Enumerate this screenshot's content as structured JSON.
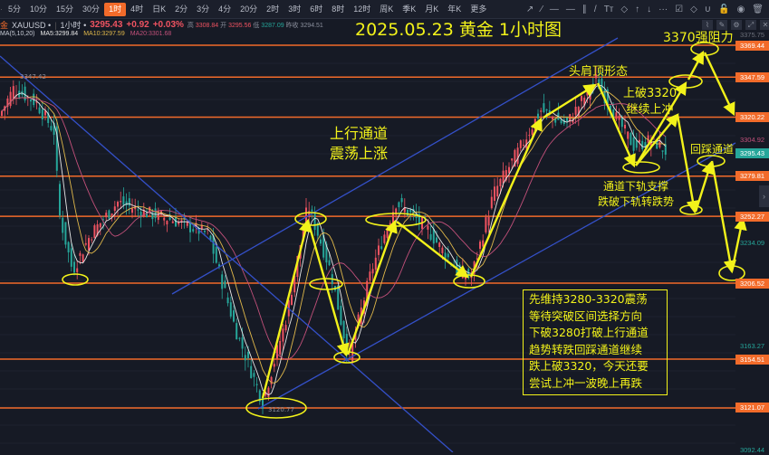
{
  "toolbar": {
    "timeframes": [
      "5分",
      "10分",
      "15分",
      "30分",
      "1时",
      "4时",
      "日K",
      "2分",
      "3分",
      "4分",
      "20分",
      "2时",
      "3时",
      "6时",
      "8时",
      "12时",
      "周K",
      "季K",
      "月K",
      "年K",
      "更多"
    ],
    "active": "1时",
    "tools": [
      "arrow-icon",
      "ray-icon",
      "horizontal-line-icon",
      "horizontal-ray-icon",
      "parallel-channel-icon",
      "trend-line-icon",
      "text-icon",
      "tag-icon",
      "arrow-up-icon",
      "arrow-down-icon",
      "more-icon",
      "edit-icon",
      "eraser-icon",
      "magnet-icon",
      "lock-icon",
      "eye-icon",
      "trash-icon"
    ],
    "tool_glyphs": [
      "↗",
      "⁄",
      "—",
      "—",
      "∥",
      "/",
      "Tт",
      "◇",
      "↑",
      "↓",
      "···",
      "☑",
      "◇",
      "∪",
      "🔓",
      "◉",
      "🗑"
    ]
  },
  "info": {
    "symbol_prefix": "金",
    "symbol": "XAUUSD",
    "symbol_caret": "•",
    "interval": "1小时",
    "interval_caret": "•",
    "price": "3295.43",
    "change": "+0.92",
    "change_pct": "+0.03%",
    "high_label": "高",
    "high": "3308.84",
    "open_label": "开",
    "open": "3295.56",
    "low_label": "低",
    "low": "3287.09",
    "prev_label": "昨收",
    "prev": "3294.51"
  },
  "ma": {
    "label": "MA(5,10,20)",
    "ma5": "MA5:3299.84",
    "ma10": "MA10:3297.59",
    "ma20": "MA20:3301.68"
  },
  "colors": {
    "up": "#ef5361",
    "down": "#26a69a",
    "level": "#f26b2a",
    "annotation": "#f2f21a",
    "trendline": "#3450c8",
    "ma5": "#e8e8e8",
    "ma10": "#e0b84a",
    "ma20": "#c2507a"
  },
  "annotations": {
    "title": "2025.05.23 黄金 1小时图",
    "resistance": "3370强阻力",
    "hs_top": "头肩顶形态",
    "break_up_1": "上破3320",
    "break_up_2": "继续上冲",
    "channel_1": "上行通道",
    "channel_2": "震荡上涨",
    "support_1": "通道下轨支撑",
    "support_2": "跌破下轨转跌势",
    "retest": "回踩通道",
    "note": [
      "先维持3280-3320震荡",
      "等待突破区间选择方向",
      "下破3280打破上行通道",
      "趋势转跌回踩通道继续",
      "跌上破3320，今天还要",
      "尝试上冲一波晚上再跌"
    ]
  },
  "chart_labels": {
    "high_mark": "3347.42",
    "low_mark": "3120.77"
  },
  "axis": {
    "levels": [
      "3369.44",
      "3347.59",
      "3320.22",
      "3279.81",
      "3252.27",
      "3206.52",
      "3154.51",
      "3121.07"
    ],
    "ticks": [
      "3375.75",
      "3304.92",
      "3234.09",
      "3163.27",
      "3092.44"
    ],
    "current": "3295.43"
  }
}
